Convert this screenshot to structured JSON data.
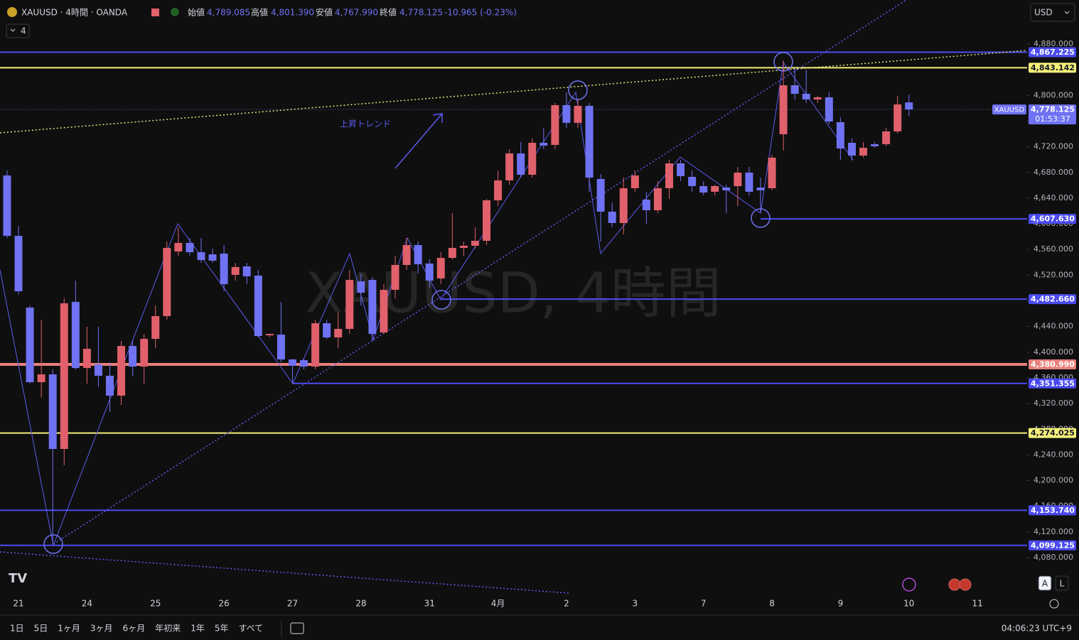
{
  "header": {
    "symbol": "XAUUSD · 4時間 · OANDA",
    "interval_count": "4",
    "open_name": "始値",
    "open": "4,789.085",
    "high_name": "高値",
    "high": "4,801.390",
    "low_name": "安値",
    "low": "4,767.990",
    "close_name": "終値",
    "close": "4,778.125",
    "change": "-10.965 (-0.23%)",
    "currency": "USD"
  },
  "chart_data": {
    "type": "candlestick",
    "watermark": "XAUUSD, 4時間",
    "annotation": "上昇トレンド",
    "xlim": [
      -0.62,
      89.35
    ],
    "ylim": [
      4021.4,
      4948.6
    ],
    "xticks": [
      {
        "value": 1,
        "label": "21"
      },
      {
        "value": 7,
        "label": "24"
      },
      {
        "value": 13,
        "label": "25"
      },
      {
        "value": 19,
        "label": "26"
      },
      {
        "value": 25,
        "label": "27"
      },
      {
        "value": 31,
        "label": "28"
      },
      {
        "value": 37,
        "label": "31"
      },
      {
        "value": 43,
        "label": "4月"
      },
      {
        "value": 49,
        "label": "2"
      },
      {
        "value": 55,
        "label": "3"
      },
      {
        "value": 61,
        "label": "7"
      },
      {
        "value": 67,
        "label": "8"
      },
      {
        "value": 73,
        "label": "9"
      },
      {
        "value": 79,
        "label": "10"
      },
      {
        "value": 85,
        "label": "11"
      }
    ],
    "yticks": [
      {
        "value": 4080,
        "label": "4,080.000"
      },
      {
        "value": 4120,
        "label": "4,120.000"
      },
      {
        "value": 4160,
        "label": "4,160.000"
      },
      {
        "value": 4200,
        "label": "4,200.000"
      },
      {
        "value": 4240,
        "label": "4,240.000"
      },
      {
        "value": 4280,
        "label": "4,280.000"
      },
      {
        "value": 4320,
        "label": "4,320.000"
      },
      {
        "value": 4360,
        "label": "4,360.000"
      },
      {
        "value": 4400,
        "label": "4,400.000"
      },
      {
        "value": 4440,
        "label": "4,440.000"
      },
      {
        "value": 4480,
        "label": "4,480.000"
      },
      {
        "value": 4520,
        "label": "4,520.000"
      },
      {
        "value": 4560,
        "label": "4,560.000"
      },
      {
        "value": 4600,
        "label": "4,600.000"
      },
      {
        "value": 4640,
        "label": "4,640.000"
      },
      {
        "value": 4680,
        "label": "4,680.000"
      },
      {
        "value": 4720,
        "label": "4,720.000"
      },
      {
        "value": 4760,
        "label": "4,760.000"
      },
      {
        "value": 4800,
        "label": "4,800.000"
      },
      {
        "value": 4840,
        "label": "4,840.000"
      },
      {
        "value": 4880,
        "label": "4,880.000"
      }
    ],
    "up_color": "#e0606b",
    "down_color": "#6f72f2",
    "open": [
      4675.3,
      4581.2,
      4469.5,
      4353.3,
      4365.5,
      4249.3,
      4478.3,
      4375.4,
      4381.0,
      4363.3,
      4332.3,
      4409.7,
      4377.6,
      4420.8,
      4456.2,
      4556.9,
      4570.2,
      4555.8,
      4552.5,
      4553.6,
      4520.4,
      4533.7,
      4519.3,
      4426.3,
      4427.4,
      4388.7,
      4387.6,
      4377.6,
      4445.1,
      4423.0,
      4436.3,
      4510.4,
      4512.6,
      4430.7,
      4497.1,
      4535.9,
      4566.9,
      4538.1,
      4514.9,
      4546.9,
      4562.4,
      4565.8,
      4573.5,
      4636.6,
      4667.6,
      4709.6,
      4676.4,
      4726.2,
      4722.9,
      4784.8,
      4757.2,
      4783.7,
      4669.8,
      4618.9,
      4601.2,
      4655.4,
      4637.7,
      4621.1,
      4655.4,
      4694.1,
      4673.1,
      4658.7,
      4649.9,
      4656.5,
      4658.7,
      4679.7,
      4656.5,
      4655.4,
      4739.5,
      4815.8,
      4802.5,
      4793.7,
      4797.0,
      4758.3,
      4726.2,
      4706.3,
      4724.0,
      4724.0,
      4743.9,
      4789.085
    ],
    "high": [
      4683.0,
      4596.7,
      4472.8,
      4450.7,
      4373.2,
      4483.9,
      4511.5,
      4439.6,
      4439.6,
      4384.3,
      4417.5,
      4417.5,
      4428.5,
      4472.8,
      4572.4,
      4594.5,
      4577.9,
      4577.9,
      4561.3,
      4566.9,
      4539.2,
      4539.2,
      4528.1,
      4428.5,
      4478.3,
      4389.8,
      4389.8,
      4450.7,
      4450.7,
      4461.7,
      4528.1,
      4522.6,
      4517.0,
      4506.0,
      4550.3,
      4577.9,
      4572.4,
      4544.7,
      4555.8,
      4616.6,
      4572.4,
      4594.5,
      4638.8,
      4683.0,
      4716.2,
      4727.3,
      4732.8,
      4749.4,
      4788.2,
      4804.8,
      4793.7,
      4788.2,
      4677.5,
      4633.2,
      4672.0,
      4683.0,
      4649.9,
      4666.4,
      4699.6,
      4699.6,
      4683.0,
      4666.4,
      4660.9,
      4660.9,
      4688.6,
      4688.6,
      4672.0,
      4707.4,
      4854.5,
      4843.5,
      4840.2,
      4799.2,
      4804.8,
      4766.0,
      4732.8,
      4727.3,
      4727.3,
      4749.4,
      4799.2,
      4801.39
    ],
    "low": [
      4577.9,
      4490.0,
      4351.1,
      4329.0,
      4102.1,
      4223.9,
      4373.2,
      4351.1,
      4345.6,
      4306.9,
      4317.9,
      4362.2,
      4351.1,
      4406.4,
      4450.7,
      4550.3,
      4550.3,
      4539.2,
      4539.2,
      4494.9,
      4511.5,
      4506.0,
      4423.0,
      4423.0,
      4384.3,
      4351.1,
      4373.2,
      4373.2,
      4420.8,
      4406.4,
      4428.5,
      4472.8,
      4417.5,
      4428.5,
      4483.9,
      4528.1,
      4522.6,
      4500.5,
      4506.0,
      4544.7,
      4550.3,
      4561.3,
      4566.9,
      4627.7,
      4660.9,
      4672.0,
      4672.0,
      4716.2,
      4716.2,
      4749.4,
      4749.4,
      4649.9,
      4572.4,
      4594.5,
      4583.5,
      4649.9,
      4600.1,
      4616.6,
      4638.8,
      4666.4,
      4649.9,
      4644.3,
      4644.3,
      4616.6,
      4627.7,
      4644.3,
      4616.6,
      4652.1,
      4714.0,
      4793.7,
      4788.2,
      4788.2,
      4755.0,
      4699.6,
      4698.5,
      4703.0,
      4718.4,
      4720.7,
      4740.6,
      4767.99
    ],
    "close": [
      4581.2,
      4494.9,
      4353.3,
      4365.5,
      4249.3,
      4476.1,
      4375.4,
      4405.3,
      4363.3,
      4332.3,
      4409.7,
      4377.6,
      4420.8,
      4456.2,
      4562.4,
      4570.2,
      4555.8,
      4543.6,
      4542.5,
      4506.0,
      4532.6,
      4518.2,
      4425.2,
      4428.5,
      4388.7,
      4378.8,
      4377.6,
      4445.1,
      4423.0,
      4436.3,
      4512.6,
      4492.7,
      4428.5,
      4497.1,
      4535.9,
      4566.9,
      4537.0,
      4511.5,
      4546.9,
      4562.4,
      4565.8,
      4573.5,
      4636.6,
      4667.6,
      4709.6,
      4676.4,
      4726.2,
      4721.8,
      4784.8,
      4757.2,
      4783.7,
      4672.0,
      4618.9,
      4601.2,
      4655.4,
      4675.3,
      4621.1,
      4655.4,
      4694.1,
      4674.2,
      4658.7,
      4648.7,
      4658.7,
      4652.1,
      4679.7,
      4649.9,
      4652.1,
      4703.0,
      4815.8,
      4802.5,
      4793.7,
      4797.0,
      4759.4,
      4717.3,
      4706.3,
      4718.4,
      4720.7,
      4743.9,
      4785.9,
      4778.125
    ],
    "levels": [
      {
        "value": 4867.225,
        "label": "4,867.225",
        "color": "#4b4bf0"
      },
      {
        "value": 4843.142,
        "label": "4,843.142",
        "color": "#f5f07a"
      },
      {
        "value": 4607.63,
        "label": "4,607.630",
        "color": "#4b4bf0",
        "start": 66
      },
      {
        "value": 4482.66,
        "label": "4,482.660",
        "color": "#4b4bf0",
        "start": 38
      },
      {
        "value": 4380.99,
        "label": "4,380.990",
        "color": "#e8807c",
        "line_width": 4
      },
      {
        "value": 4351.355,
        "label": "4,351.355",
        "color": "#4b4bf0",
        "start": 25
      },
      {
        "value": 4274.025,
        "label": "4,274.025",
        "color": "#f5f07a"
      },
      {
        "value": 4153.74,
        "label": "4,153.740",
        "color": "#4b4bf0"
      },
      {
        "value": 4099.125,
        "label": "4,099.125",
        "color": "#4b4bf0"
      }
    ],
    "last_price": {
      "value": 4778.125,
      "label": "4,778.125",
      "countdown": "01:53:37",
      "symbol_tag": "XAUUSD",
      "color": "#6f72f2"
    }
  },
  "footer": {
    "ranges": [
      "1日",
      "5日",
      "1ヶ月",
      "3ヶ月",
      "6ヶ月",
      "年初来",
      "1年",
      "5年",
      "すべて"
    ],
    "clock": "04:06:23 UTC+9",
    "scale_buttons": [
      "A",
      "L"
    ]
  }
}
